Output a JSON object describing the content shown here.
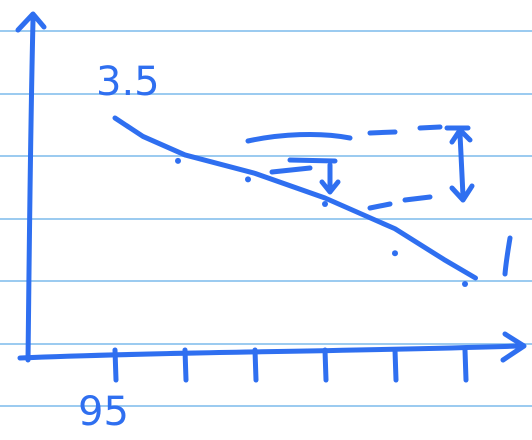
{
  "chart_data": {
    "type": "line",
    "title": "",
    "xlabel": "",
    "ylabel": "",
    "start_value_label": "3.5",
    "x_tick_label": "95",
    "x_ticks": [
      1,
      2,
      3,
      4,
      5,
      6
    ],
    "xlim": [
      0,
      6.5
    ],
    "series": [
      {
        "values": [
          {
            "x": 1.0,
            "y": 3.5
          },
          {
            "x": 1.4,
            "y": 3.35
          },
          {
            "x": 2.0,
            "y": 3.2
          },
          {
            "x": 3.0,
            "y": 3.05
          },
          {
            "x": 4.0,
            "y": 2.85
          },
          {
            "x": 5.0,
            "y": 2.6
          },
          {
            "x": 5.7,
            "y": 2.35
          },
          {
            "x": 6.15,
            "y": 2.2
          }
        ]
      }
    ],
    "scatter_points": [
      {
        "x": 1.9,
        "y": 3.2
      },
      {
        "x": 2.9,
        "y": 3.05
      },
      {
        "x": 4.0,
        "y": 2.85
      },
      {
        "x": 5.0,
        "y": 2.45
      },
      {
        "x": 6.0,
        "y": 2.2
      }
    ],
    "grid": false,
    "accent_color": "#2f6ff0",
    "rule_color": "#9ccbf0"
  }
}
